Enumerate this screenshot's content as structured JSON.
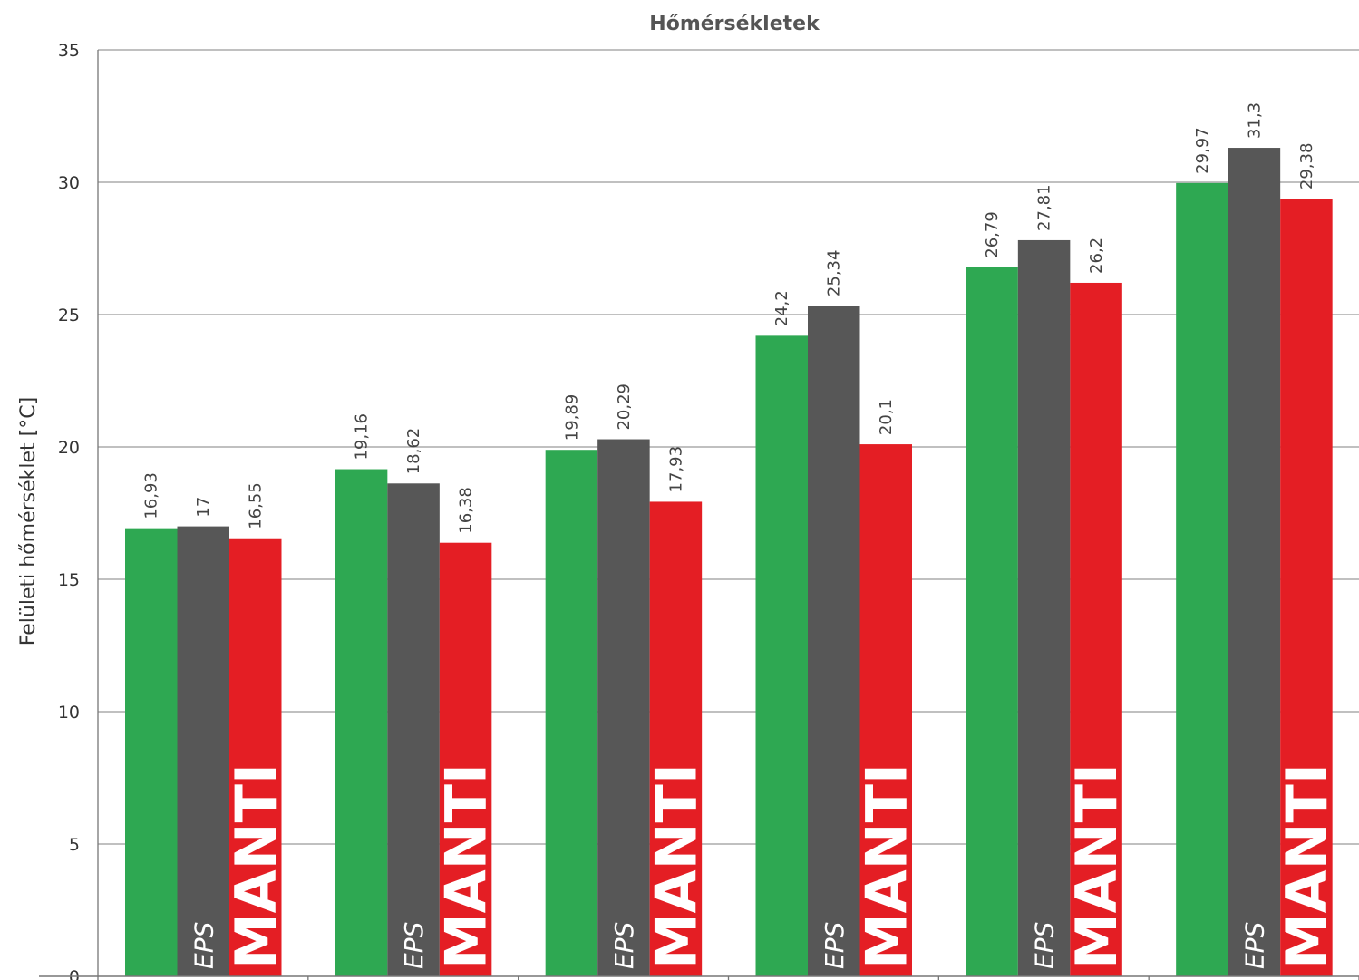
{
  "chart_data": {
    "type": "bar",
    "title": "Hőmérsékletek",
    "ylabel": "Felületi hőmérséklet [°C]",
    "xlabel": "",
    "ylim": [
      0,
      35
    ],
    "yticks": [
      "0",
      "5",
      "10",
      "15",
      "20",
      "25",
      "30",
      "35"
    ],
    "grid": true,
    "categories": [
      "",
      "",
      "",
      "",
      "",
      ""
    ],
    "series": [
      {
        "values": [
          16.93,
          19.16,
          19.89,
          24.2,
          26.79,
          29.97
        ],
        "labels": [
          "16,93",
          "19,16",
          "19,89",
          "24,2",
          "26,79",
          "29,97"
        ],
        "color": "#2ea852"
      },
      {
        "name": "EPS",
        "values": [
          17,
          18.62,
          20.29,
          25.34,
          27.81,
          31.3
        ],
        "labels": [
          "17",
          "18,62",
          "20,29",
          "25,34",
          "27,81",
          "31,3"
        ],
        "color": "#575757"
      },
      {
        "name": "MANTI",
        "values": [
          16.55,
          16.38,
          17.93,
          20.1,
          26.2,
          29.38
        ],
        "labels": [
          "16,55",
          "16,38",
          "17,93",
          "20,1",
          "26,2",
          "29,38"
        ],
        "color": "#e41e24"
      }
    ]
  }
}
